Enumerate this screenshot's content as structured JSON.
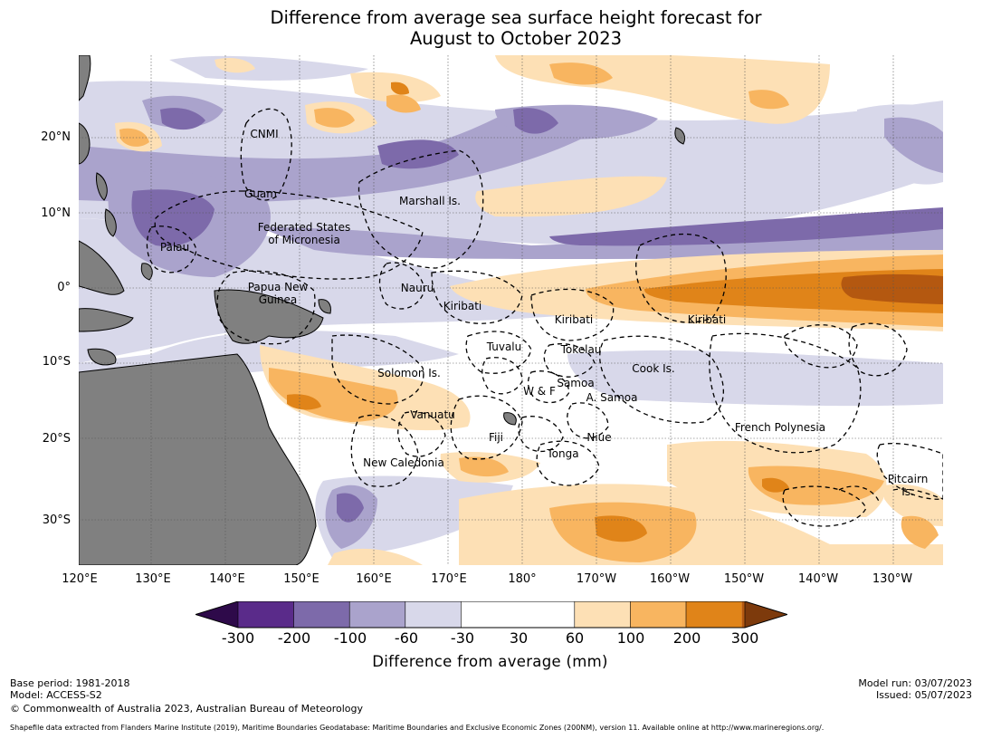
{
  "title": {
    "line1": "Difference from average sea surface height forecast for",
    "line2": "August to October 2023"
  },
  "map": {
    "latitude_labels": [
      "20°N",
      "10°N",
      "0°",
      "10°S",
      "20°S",
      "30°S"
    ],
    "longitude_labels": [
      "120°E",
      "130°E",
      "140°E",
      "150°E",
      "160°E",
      "170°E",
      "180°",
      "170°W",
      "160°W",
      "150°W",
      "140°W",
      "130°W"
    ],
    "places": [
      {
        "name": "CNMI"
      },
      {
        "name": "Guam"
      },
      {
        "name": "Marshall Is."
      },
      {
        "name": "Federated States\nof Micronesia"
      },
      {
        "name": "Palau"
      },
      {
        "name": "Papua New\nGuinea"
      },
      {
        "name": "Nauru"
      },
      {
        "name": "Kiribati"
      },
      {
        "name": "Kiribati"
      },
      {
        "name": "Kiribati"
      },
      {
        "name": "Tuvalu"
      },
      {
        "name": "Tokelau"
      },
      {
        "name": "Solomon Is."
      },
      {
        "name": "Cook Is."
      },
      {
        "name": "Samoa"
      },
      {
        "name": "W & F"
      },
      {
        "name": "A. Samoa"
      },
      {
        "name": "Vanuatu"
      },
      {
        "name": "French Polynesia"
      },
      {
        "name": "Fiji"
      },
      {
        "name": "Niue"
      },
      {
        "name": "Tonga"
      },
      {
        "name": "New Caledonia"
      },
      {
        "name": "Pitcairn\nIs."
      }
    ],
    "colors": {
      "land": "#808080",
      "eez_line": "#000000",
      "graticule": "#555555"
    }
  },
  "colorbar": {
    "ticks": [
      "-300",
      "-200",
      "-100",
      "-60",
      "-30",
      "30",
      "60",
      "100",
      "200",
      "300"
    ],
    "colors": [
      "#2e0a4a",
      "#5a2b8a",
      "#7d6aaa",
      "#aaa3cc",
      "#d8d8ea",
      "#ffffff",
      "#fde0b5",
      "#f8b560",
      "#e08419",
      "#b45810",
      "#7d3a0c"
    ],
    "label": "Difference from average (mm)"
  },
  "footer": {
    "base_period": "Base period: 1981-2018",
    "model": "Model: ACCESS-S2",
    "copyright": "© Commonwealth of Australia 2023, Australian Bureau of Meteorology",
    "model_run": "Model run: 03/07/2023",
    "issued": "Issued: 05/07/2023",
    "credit": "Shapefile data extracted from Flanders Marine Institute (2019), Maritime Boundaries Geodatabase: Maritime Boundaries and Exclusive Economic Zones (200NM), version 11. Available online at http://www.marineregions.org/."
  }
}
